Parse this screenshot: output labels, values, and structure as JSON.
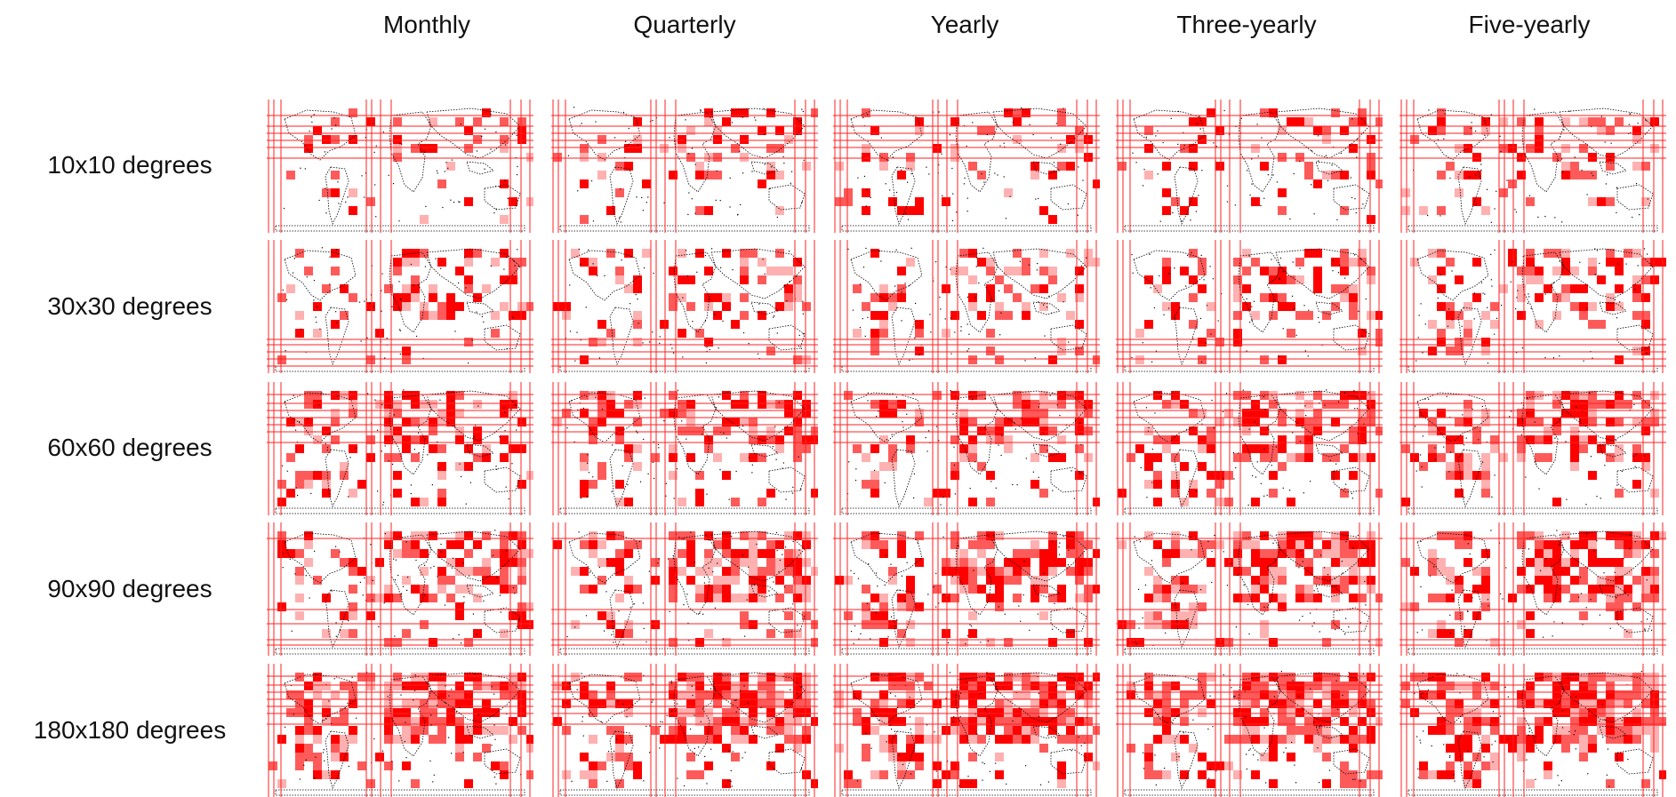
{
  "columns": [
    "Monthly",
    "Quarterly",
    "Yearly",
    "Three-yearly",
    "Five-yearly"
  ],
  "rows": [
    "10x10 degrees",
    "30x30 degrees",
    "60x60 degrees",
    "90x90 degrees",
    "180x180 degrees"
  ],
  "colors": {
    "cell_strong": "#ff0000",
    "cell_medium": "#ff5a5a",
    "cell_light": "#ffb0b0",
    "grid_line": "#ff2020",
    "coastline": "#000000",
    "background": "#ffffff"
  },
  "panel_content": {
    "type": "world-map-grid",
    "description_visible": "world map with red grid cells per panel"
  }
}
